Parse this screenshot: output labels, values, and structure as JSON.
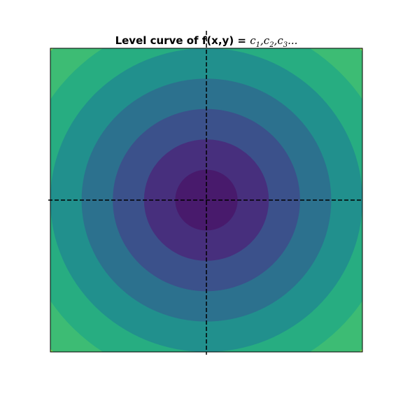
{
  "chart_data": {
    "type": "contour",
    "title": {
      "text": "Level curve of f(x,y) = ",
      "math_terms": [
        {
          "base": "c",
          "sub": "1",
          "after": ","
        },
        {
          "base": "c",
          "sub": "2",
          "after": ","
        },
        {
          "base": "c",
          "sub": "3",
          "after": "..."
        }
      ]
    },
    "xlabel": "",
    "ylabel": "",
    "x_range": [
      -5,
      5
    ],
    "y_range": [
      -5,
      5
    ],
    "axis_ticks_visible": false,
    "grid": false,
    "reference_lines": {
      "x": 0,
      "y": 0,
      "style": "dashed",
      "color": "#000000"
    },
    "level_radii": [
      1,
      2,
      3,
      4,
      5,
      6
    ],
    "fill_colors": [
      "#481a6c",
      "#472f7d",
      "#3b518b",
      "#2c718e",
      "#21908d",
      "#27ad81",
      "#3dbc74",
      "#84d44b"
    ]
  }
}
